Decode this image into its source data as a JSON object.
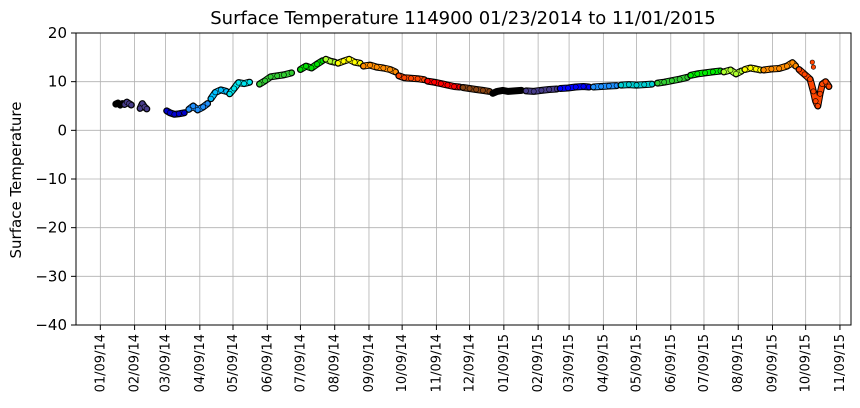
{
  "chart_data": {
    "type": "scatter",
    "title": "Surface Temperature 114900  01/23/2014 to 11/01/2015",
    "xlabel": "",
    "ylabel": "Surface Temperature",
    "ylim": [
      -40,
      20
    ],
    "yticks": [
      -40,
      -30,
      -20,
      -10,
      0,
      10,
      20
    ],
    "xlim": [
      "2013-12-18",
      "2015-11-19"
    ],
    "xticks": [
      {
        "date": "2014-01-09",
        "label": "01/09/14"
      },
      {
        "date": "2014-02-09",
        "label": "02/09/14"
      },
      {
        "date": "2014-03-09",
        "label": "03/09/14"
      },
      {
        "date": "2014-04-09",
        "label": "04/09/14"
      },
      {
        "date": "2014-05-09",
        "label": "05/09/14"
      },
      {
        "date": "2014-06-09",
        "label": "06/09/14"
      },
      {
        "date": "2014-07-09",
        "label": "07/09/14"
      },
      {
        "date": "2014-08-09",
        "label": "08/09/14"
      },
      {
        "date": "2014-09-09",
        "label": "09/09/14"
      },
      {
        "date": "2014-10-09",
        "label": "10/09/14"
      },
      {
        "date": "2014-11-09",
        "label": "11/09/14"
      },
      {
        "date": "2014-12-09",
        "label": "12/09/14"
      },
      {
        "date": "2015-01-09",
        "label": "01/09/15"
      },
      {
        "date": "2015-02-09",
        "label": "02/09/15"
      },
      {
        "date": "2015-03-09",
        "label": "03/09/15"
      },
      {
        "date": "2015-04-09",
        "label": "04/09/15"
      },
      {
        "date": "2015-05-09",
        "label": "05/09/15"
      },
      {
        "date": "2015-06-09",
        "label": "06/09/15"
      },
      {
        "date": "2015-07-09",
        "label": "07/09/15"
      },
      {
        "date": "2015-08-09",
        "label": "08/09/15"
      },
      {
        "date": "2015-09-09",
        "label": "09/09/15"
      },
      {
        "date": "2015-10-09",
        "label": "10/09/15"
      },
      {
        "date": "2015-11-09",
        "label": "11/09/15"
      }
    ],
    "grid": true,
    "series": [
      {
        "color": "#000000",
        "points": [
          [
            "2014-01-23",
            5.4
          ],
          [
            "2014-01-25",
            5.6
          ],
          [
            "2014-01-27",
            5.2
          ],
          [
            "2014-01-29",
            5.5
          ]
        ]
      },
      {
        "color": "#483d8b",
        "points": [
          [
            "2014-01-31",
            5.3
          ],
          [
            "2014-02-02",
            5.8
          ],
          [
            "2014-02-04",
            5.5
          ],
          [
            "2014-02-06",
            5.2
          ]
        ]
      },
      {
        "color": "#483d8b",
        "points": [
          [
            "2014-02-14",
            4.5
          ],
          [
            "2014-02-16",
            5.5
          ],
          [
            "2014-02-18",
            4.8
          ],
          [
            "2014-02-20",
            4.4
          ]
        ]
      },
      {
        "color": "#0000cd",
        "points": [
          [
            "2014-03-10",
            4.0
          ],
          [
            "2014-03-13",
            3.6
          ],
          [
            "2014-03-17",
            3.3
          ],
          [
            "2014-03-21",
            3.4
          ],
          [
            "2014-03-26",
            3.6
          ]
        ]
      },
      {
        "color": "#1e90ff",
        "points": [
          [
            "2014-03-30",
            4.3
          ],
          [
            "2014-04-03",
            5.0
          ],
          [
            "2014-04-07",
            4.2
          ],
          [
            "2014-04-12",
            4.8
          ],
          [
            "2014-04-16",
            5.5
          ]
        ]
      },
      {
        "color": "#00bfff",
        "points": [
          [
            "2014-04-19",
            6.5
          ],
          [
            "2014-04-23",
            7.8
          ],
          [
            "2014-04-28",
            8.3
          ],
          [
            "2014-05-03",
            8.0
          ]
        ]
      },
      {
        "color": "#00e5ee",
        "points": [
          [
            "2014-05-06",
            7.5
          ],
          [
            "2014-05-10",
            8.6
          ],
          [
            "2014-05-14",
            9.8
          ],
          [
            "2014-05-19",
            9.6
          ],
          [
            "2014-05-24",
            9.9
          ]
        ]
      },
      {
        "color": "#32cd32",
        "points": [
          [
            "2014-06-02",
            9.5
          ],
          [
            "2014-06-07",
            10.2
          ],
          [
            "2014-06-12",
            11.0
          ],
          [
            "2014-06-18",
            11.2
          ],
          [
            "2014-06-24",
            11.4
          ],
          [
            "2014-07-01",
            11.8
          ]
        ]
      },
      {
        "color": "#00e000",
        "points": [
          [
            "2014-07-09",
            12.5
          ],
          [
            "2014-07-14",
            13.2
          ],
          [
            "2014-07-19",
            12.8
          ],
          [
            "2014-07-24",
            13.6
          ],
          [
            "2014-07-29",
            14.3
          ]
        ]
      },
      {
        "color": "#adff2f",
        "points": [
          [
            "2014-08-01",
            14.6
          ],
          [
            "2014-08-05",
            14.2
          ],
          [
            "2014-08-09",
            14.0
          ]
        ]
      },
      {
        "color": "#ffff00",
        "points": [
          [
            "2014-08-12",
            13.8
          ],
          [
            "2014-08-17",
            14.2
          ],
          [
            "2014-08-22",
            14.6
          ],
          [
            "2014-08-27",
            14.0
          ],
          [
            "2014-09-01",
            13.8
          ]
        ]
      },
      {
        "color": "#ff8c00",
        "points": [
          [
            "2014-09-04",
            13.2
          ],
          [
            "2014-09-10",
            13.4
          ],
          [
            "2014-09-16",
            13.0
          ],
          [
            "2014-09-22",
            12.8
          ],
          [
            "2014-09-28",
            12.5
          ],
          [
            "2014-10-03",
            12.0
          ]
        ]
      },
      {
        "color": "#ff4500",
        "points": [
          [
            "2014-10-06",
            11.2
          ],
          [
            "2014-10-11",
            10.8
          ],
          [
            "2014-10-17",
            10.7
          ],
          [
            "2014-10-23",
            10.6
          ],
          [
            "2014-10-29",
            10.4
          ]
        ]
      },
      {
        "color": "#ff0000",
        "points": [
          [
            "2014-11-01",
            10.1
          ],
          [
            "2014-11-07",
            9.9
          ],
          [
            "2014-11-13",
            9.6
          ],
          [
            "2014-11-19",
            9.3
          ],
          [
            "2014-11-25",
            9.0
          ],
          [
            "2014-11-30",
            8.9
          ]
        ]
      },
      {
        "color": "#8b4513",
        "points": [
          [
            "2014-12-03",
            8.8
          ],
          [
            "2014-12-09",
            8.6
          ],
          [
            "2014-12-15",
            8.4
          ],
          [
            "2014-12-21",
            8.2
          ],
          [
            "2014-12-27",
            8.0
          ]
        ]
      },
      {
        "color": "#000000",
        "points": [
          [
            "2014-12-30",
            7.6
          ],
          [
            "2015-01-03",
            8.0
          ],
          [
            "2015-01-08",
            8.2
          ],
          [
            "2015-01-13",
            8.0
          ],
          [
            "2015-01-19",
            8.1
          ],
          [
            "2015-01-25",
            8.2
          ]
        ]
      },
      {
        "color": "#483d8b",
        "points": [
          [
            "2015-01-29",
            8.1
          ],
          [
            "2015-02-05",
            8.0
          ],
          [
            "2015-02-12",
            8.2
          ],
          [
            "2015-02-19",
            8.4
          ],
          [
            "2015-02-26",
            8.5
          ]
        ]
      },
      {
        "color": "#0000ff",
        "points": [
          [
            "2015-03-01",
            8.6
          ],
          [
            "2015-03-08",
            8.7
          ],
          [
            "2015-03-15",
            8.9
          ],
          [
            "2015-03-22",
            9.0
          ],
          [
            "2015-03-27",
            8.9
          ]
        ]
      },
      {
        "color": "#1e90ff",
        "points": [
          [
            "2015-03-31",
            8.9
          ],
          [
            "2015-04-07",
            9.0
          ],
          [
            "2015-04-14",
            9.1
          ],
          [
            "2015-04-21",
            9.2
          ]
        ]
      },
      {
        "color": "#00ced1",
        "points": [
          [
            "2015-04-25",
            9.3
          ],
          [
            "2015-05-02",
            9.4
          ],
          [
            "2015-05-09",
            9.3
          ],
          [
            "2015-05-16",
            9.4
          ],
          [
            "2015-05-23",
            9.5
          ]
        ]
      },
      {
        "color": "#32cd32",
        "points": [
          [
            "2015-05-28",
            9.7
          ],
          [
            "2015-06-03",
            9.9
          ],
          [
            "2015-06-10",
            10.2
          ],
          [
            "2015-06-17",
            10.5
          ],
          [
            "2015-06-24",
            10.9
          ]
        ]
      },
      {
        "color": "#00ee00",
        "points": [
          [
            "2015-06-27",
            11.3
          ],
          [
            "2015-07-03",
            11.6
          ],
          [
            "2015-07-10",
            11.8
          ],
          [
            "2015-07-17",
            12.0
          ],
          [
            "2015-07-24",
            12.2
          ]
        ]
      },
      {
        "color": "#adff2f",
        "points": [
          [
            "2015-07-27",
            12.0
          ],
          [
            "2015-08-02",
            12.4
          ],
          [
            "2015-08-07",
            11.6
          ],
          [
            "2015-08-12",
            12.2
          ]
        ]
      },
      {
        "color": "#ffff00",
        "points": [
          [
            "2015-08-15",
            12.5
          ],
          [
            "2015-08-20",
            12.8
          ],
          [
            "2015-08-25",
            12.6
          ],
          [
            "2015-08-29",
            12.4
          ]
        ]
      },
      {
        "color": "#ff8c00",
        "points": [
          [
            "2015-09-01",
            12.4
          ],
          [
            "2015-09-08",
            12.6
          ],
          [
            "2015-09-15",
            12.7
          ],
          [
            "2015-09-22",
            13.2
          ],
          [
            "2015-09-27",
            13.9
          ],
          [
            "2015-09-30",
            13.2
          ]
        ]
      },
      {
        "color": "#ff4500",
        "points": [
          [
            "2015-10-03",
            12.5
          ],
          [
            "2015-10-08",
            11.5
          ],
          [
            "2015-10-13",
            10.5
          ],
          [
            "2015-10-16",
            8.0
          ],
          [
            "2015-10-18",
            6.0
          ],
          [
            "2015-10-20",
            5.0
          ],
          [
            "2015-10-22",
            7.5
          ],
          [
            "2015-10-24",
            9.5
          ],
          [
            "2015-10-27",
            10.0
          ],
          [
            "2015-10-30",
            9.0
          ]
        ]
      }
    ],
    "outliers": [
      {
        "color": "#ff4500",
        "points": [
          [
            "2015-10-15",
            14.0
          ],
          [
            "2015-10-16",
            13.0
          ]
        ]
      }
    ]
  }
}
